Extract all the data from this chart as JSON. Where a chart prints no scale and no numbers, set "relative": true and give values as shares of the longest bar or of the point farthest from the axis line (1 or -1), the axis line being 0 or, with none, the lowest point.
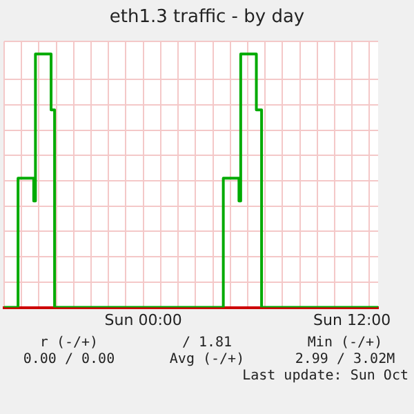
{
  "chart_data": {
    "type": "step",
    "title": "eth1.3 traffic - by day",
    "relative": true,
    "categories": [
      null,
      null,
      null,
      null,
      null,
      null,
      null,
      null,
      null,
      null,
      null,
      null,
      null,
      null,
      null,
      null,
      null,
      null,
      null,
      null,
      null,
      null,
      null,
      null,
      null,
      null,
      null,
      null,
      null,
      null,
      null,
      null,
      null,
      null,
      null,
      null,
      null,
      null,
      null,
      null,
      null,
      null,
      null,
      null,
      null,
      null,
      null,
      null,
      null,
      null,
      null,
      null,
      null,
      null,
      null,
      null,
      null,
      null,
      null,
      null,
      null,
      null,
      null,
      null,
      null,
      null,
      null,
      null,
      null,
      null,
      null,
      null,
      null,
      null,
      null,
      null,
      null,
      null,
      null,
      null,
      "Sun 00:00",
      null,
      null,
      null,
      null,
      null,
      null,
      null,
      null,
      null,
      null,
      null,
      null,
      null,
      null,
      null,
      null,
      null,
      null,
      null,
      null,
      null,
      null,
      null,
      null,
      null,
      null,
      null,
      null,
      null,
      null,
      null,
      null,
      null,
      null,
      null,
      null,
      null,
      null,
      null,
      null,
      null,
      null,
      null,
      null,
      null,
      null,
      null,
      null,
      null,
      null,
      null,
      null,
      null,
      null,
      null,
      null,
      null,
      null,
      null,
      null,
      null,
      null,
      null,
      null,
      null,
      null,
      null,
      null,
      null,
      null,
      null,
      null,
      null,
      null,
      null,
      null,
      null,
      null,
      null,
      null,
      null,
      null,
      null,
      null,
      null,
      null,
      null,
      null,
      null,
      null,
      null,
      null,
      null,
      null,
      null,
      null,
      null,
      null,
      null,
      null,
      null,
      null,
      null,
      null,
      null,
      null,
      null,
      null,
      null,
      null,
      null,
      null,
      null,
      null,
      null,
      null,
      null,
      null,
      null,
      "Sun 12:00",
      null,
      null,
      null,
      null,
      null,
      null,
      null,
      null,
      null,
      null,
      null,
      null,
      null,
      null,
      null
    ],
    "series": [
      {
        "color": "#00aa00",
        "values": [
          0,
          0,
          0,
          0,
          0,
          0,
          0,
          0,
          0,
          0.51,
          0.51,
          0.51,
          0.51,
          0.51,
          0.51,
          0.51,
          0.51,
          0.51,
          0.42,
          1,
          1,
          1,
          1,
          1,
          1,
          1,
          1,
          1,
          0.78,
          0.78,
          0,
          0,
          0,
          0,
          0,
          0,
          0,
          0,
          0,
          0,
          0,
          0,
          0,
          0,
          0,
          0,
          0,
          0,
          0,
          0,
          0,
          0,
          0,
          0,
          0,
          0,
          0,
          0,
          0,
          0,
          0,
          0,
          0,
          0,
          0,
          0,
          0,
          0,
          0,
          0,
          0,
          0,
          0,
          0,
          0,
          0,
          0,
          0,
          0,
          0,
          0,
          0,
          0,
          0,
          0,
          0,
          0,
          0,
          0,
          0,
          0,
          0,
          0,
          0,
          0,
          0,
          0,
          0,
          0,
          0,
          0,
          0,
          0,
          0,
          0,
          0,
          0,
          0,
          0,
          0,
          0,
          0,
          0,
          0,
          0,
          0,
          0,
          0,
          0,
          0,
          0,
          0,
          0,
          0,
          0,
          0,
          0,
          0.51,
          0.51,
          0.51,
          0.51,
          0.51,
          0.51,
          0.51,
          0.51,
          0.51,
          0.42,
          1,
          1,
          1,
          1,
          1,
          1,
          1,
          1,
          1,
          0.78,
          0.78,
          0.78,
          0,
          0,
          0,
          0,
          0,
          0,
          0,
          0,
          0,
          0,
          0,
          0,
          0,
          0,
          0,
          0,
          0,
          0,
          0,
          0,
          0,
          0,
          0,
          0,
          0,
          0,
          0,
          0,
          0,
          0,
          0,
          0,
          0,
          0,
          0,
          0,
          0,
          0,
          0,
          0,
          0,
          0,
          0,
          0,
          0,
          0,
          0,
          0,
          0,
          0,
          0,
          0,
          0,
          0,
          0,
          0,
          0,
          0,
          0,
          0,
          0,
          0,
          0,
          0,
          0,
          0,
          0
        ]
      }
    ],
    "grid": true,
    "legend": false,
    "marker": "none",
    "line_style": "solid",
    "annotations": [
      "r (-/+)",
      "/ 1.81",
      "Min (-/+)",
      "0.00 / 0.00",
      "Avg (-/+)",
      "2.99 / 3.02M",
      "Last update: Sun Oct"
    ]
  }
}
